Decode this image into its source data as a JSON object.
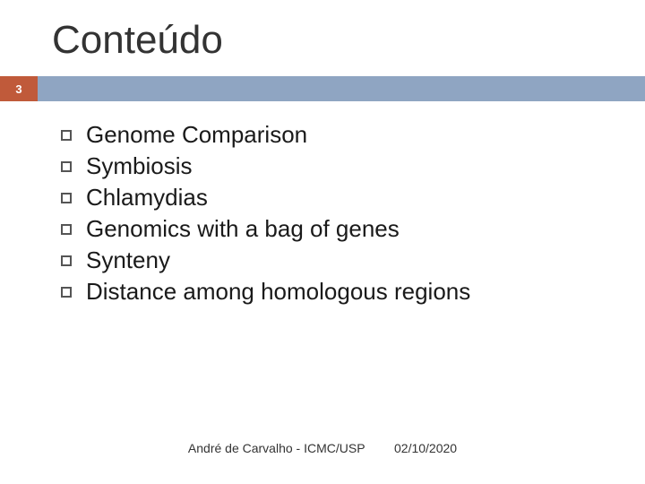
{
  "title": "Conteúdo",
  "slide_number": "3",
  "colors": {
    "accent": "#c05a3a",
    "bar": "#8fa5c2",
    "title_text": "#333333",
    "body_text": "#1a1a1a",
    "footer_text": "#333333",
    "background": "#ffffff",
    "bullet_border": "#555555"
  },
  "typography": {
    "title_fontsize": 44,
    "body_fontsize": 26,
    "footer_fontsize": 14,
    "slide_number_fontsize": 13
  },
  "items": [
    "Genome Comparison",
    "Symbiosis",
    "Chlamydias",
    "Genomics with a bag of genes",
    "Synteny",
    "Distance among homologous regions"
  ],
  "footer": {
    "author": "André de Carvalho - ICMC/USP",
    "date": "02/10/2020"
  }
}
